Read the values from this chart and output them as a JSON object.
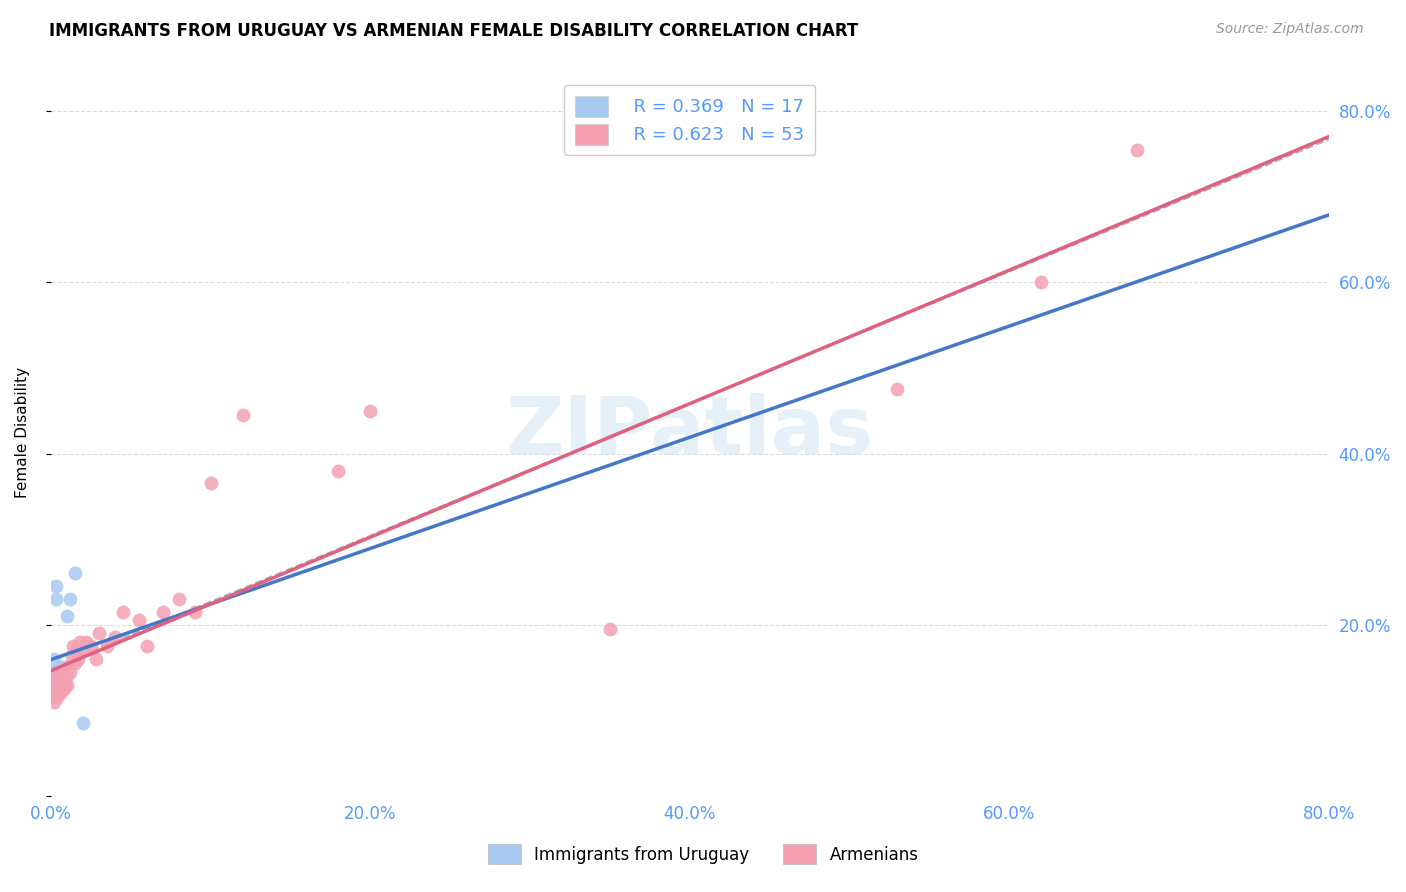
{
  "title": "IMMIGRANTS FROM URUGUAY VS ARMENIAN FEMALE DISABILITY CORRELATION CHART",
  "source": "Source: ZipAtlas.com",
  "ylabel": "Female Disability",
  "watermark": "ZIPatlas",
  "legend_r1": "R = 0.369",
  "legend_n1": "N = 17",
  "legend_r2": "R = 0.623",
  "legend_n2": "N = 53",
  "uruguay_color": "#a8c8f0",
  "armenian_color": "#f4a0b0",
  "trend_uruguay_color": "#4477cc",
  "trend_armenian_color": "#e06080",
  "tick_color": "#5599ff",
  "xmin": 0.0,
  "xmax": 0.8,
  "ymin": 0.0,
  "ymax": 0.85,
  "uruguay_x": [
    0.001,
    0.002,
    0.002,
    0.003,
    0.003,
    0.004,
    0.004,
    0.005,
    0.005,
    0.006,
    0.007,
    0.008,
    0.009,
    0.01,
    0.012,
    0.015,
    0.02
  ],
  "uruguay_y": [
    0.115,
    0.145,
    0.16,
    0.23,
    0.245,
    0.13,
    0.135,
    0.13,
    0.14,
    0.14,
    0.15,
    0.145,
    0.13,
    0.21,
    0.23,
    0.26,
    0.085
  ],
  "armenian_x": [
    0.001,
    0.001,
    0.002,
    0.002,
    0.002,
    0.003,
    0.003,
    0.003,
    0.004,
    0.004,
    0.004,
    0.005,
    0.005,
    0.005,
    0.006,
    0.006,
    0.007,
    0.007,
    0.008,
    0.008,
    0.009,
    0.009,
    0.01,
    0.01,
    0.011,
    0.012,
    0.013,
    0.014,
    0.015,
    0.016,
    0.017,
    0.018,
    0.02,
    0.022,
    0.025,
    0.028,
    0.03,
    0.035,
    0.04,
    0.045,
    0.055,
    0.06,
    0.07,
    0.08,
    0.09,
    0.1,
    0.12,
    0.18,
    0.2,
    0.35,
    0.53,
    0.62,
    0.68
  ],
  "armenian_y": [
    0.12,
    0.13,
    0.11,
    0.125,
    0.135,
    0.12,
    0.13,
    0.14,
    0.115,
    0.13,
    0.14,
    0.12,
    0.125,
    0.145,
    0.12,
    0.135,
    0.125,
    0.14,
    0.125,
    0.14,
    0.13,
    0.145,
    0.13,
    0.14,
    0.15,
    0.145,
    0.165,
    0.175,
    0.155,
    0.17,
    0.16,
    0.18,
    0.17,
    0.18,
    0.175,
    0.16,
    0.19,
    0.175,
    0.185,
    0.215,
    0.205,
    0.175,
    0.215,
    0.23,
    0.215,
    0.365,
    0.445,
    0.38,
    0.45,
    0.195,
    0.475,
    0.6,
    0.755
  ],
  "yticks": [
    0.0,
    0.2,
    0.4,
    0.6,
    0.8
  ],
  "ytick_labels": [
    "",
    "20.0%",
    "40.0%",
    "60.0%",
    "80.0%"
  ],
  "xticks": [
    0.0,
    0.2,
    0.4,
    0.6,
    0.8
  ],
  "xtick_labels": [
    "0.0%",
    "20.0%",
    "40.0%",
    "60.0%",
    "80.0%"
  ]
}
